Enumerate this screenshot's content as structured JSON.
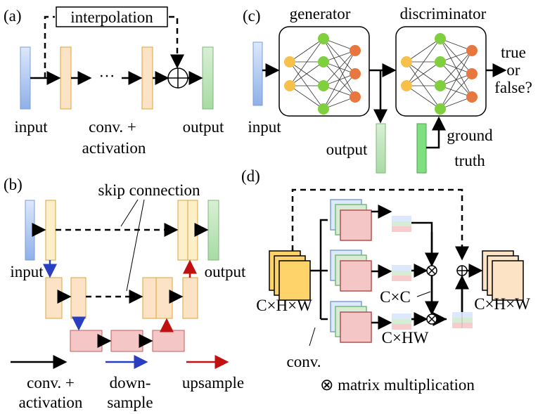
{
  "panel_a": {
    "label": "(a)",
    "interpolation": "interpolation",
    "dots": "···",
    "input": "input",
    "conv1": "conv. +",
    "conv2": "activation",
    "output": "output"
  },
  "panel_b": {
    "label": "(b)",
    "skip": "skip connection",
    "input": "input",
    "output": "output",
    "legend_conv1": "conv. +",
    "legend_conv2": "activation",
    "legend_down1": "down-",
    "legend_down2": "sample",
    "legend_up": "upsample"
  },
  "panel_c": {
    "label": "(c)",
    "generator": "generator",
    "discriminator": "discriminator",
    "input": "input",
    "output": "output",
    "result1": "true",
    "result2": "or",
    "result3": "false?",
    "gt1": "ground",
    "gt2": "truth"
  },
  "panel_d": {
    "label": "(d)",
    "in_dims": "C×H×W",
    "cc": "C×C",
    "chw": "C×HW",
    "out_dims": "C×H×W",
    "conv": "conv.",
    "legend": "⊗ matrix multiplication"
  },
  "colors": {
    "blue": "#a9c4ef",
    "orange": "#fde3c6",
    "green": "#c4e6c2",
    "red": "#f5c6c6",
    "node_yellow": "#f7c04a",
    "node_green": "#7fcf3f",
    "node_orange": "#e8773f"
  }
}
